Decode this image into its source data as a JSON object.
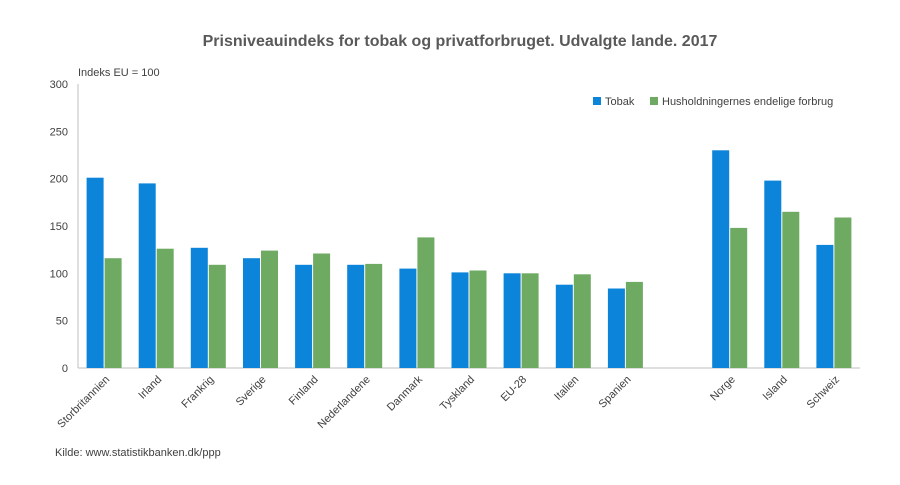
{
  "chart_data": {
    "type": "bar",
    "title": "Prisniveauindeks for tobak og privatforbruget. Udvalgte lande. 2017",
    "ylabel": "Indeks EU = 100",
    "xlabel": "",
    "ylim": [
      0,
      300
    ],
    "yticks": [
      0,
      50,
      100,
      150,
      200,
      250,
      300
    ],
    "grid": false,
    "legend_position": "top-right",
    "categories": [
      "Storbritannien",
      "Irland",
      "Frankrig",
      "Sverige",
      "Finland",
      "Nederlandene",
      "Danmark",
      "Tyskland",
      "EU-28",
      "Italien",
      "Spanien",
      "",
      "Norge",
      "Island",
      "Schweiz"
    ],
    "series": [
      {
        "name": "Tobak",
        "color": "#0B84D9",
        "values": [
          201,
          195,
          127,
          116,
          109,
          109,
          105,
          101,
          100,
          88,
          84,
          null,
          230,
          198,
          130
        ]
      },
      {
        "name": "Husholdningernes endelige forbrug",
        "color": "#6FAA63",
        "values": [
          116,
          126,
          109,
          124,
          121,
          110,
          138,
          103,
          100,
          99,
          91,
          null,
          148,
          165,
          159
        ]
      }
    ],
    "source": "Kilde: www.statistikbanken.dk/ppp"
  }
}
